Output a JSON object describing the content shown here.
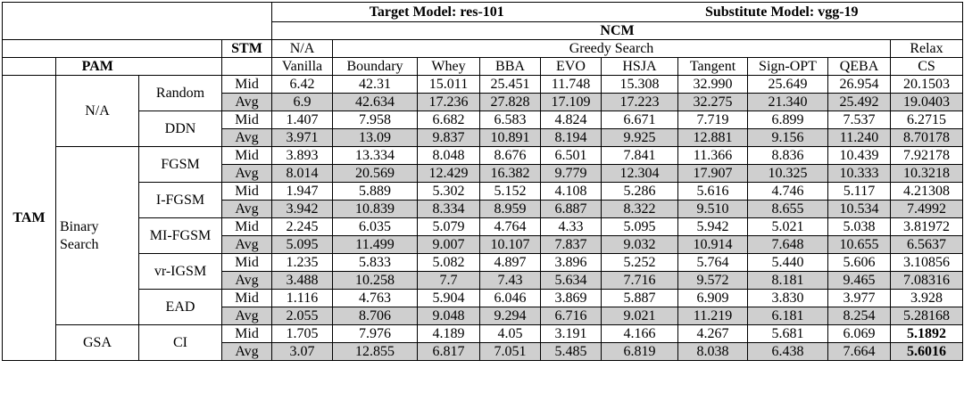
{
  "header": {
    "target_model": "Target Model: res-101",
    "substitute_model": "Substitute Model: vgg-19",
    "ncm": "NCM",
    "stm": "STM",
    "pam": "PAM",
    "tam": "TAM",
    "na": "N/A",
    "greedy_search": "Greedy Search",
    "relax": "Relax",
    "columns": [
      "Vanilla",
      "Boundary",
      "Whey",
      "BBA",
      "EVO",
      "HSJA",
      "Tangent",
      "Sign-OPT",
      "QEBA",
      "CS"
    ]
  },
  "groups": [
    {
      "tam": "N/A",
      "methods": [
        {
          "pam": "Random",
          "rows": [
            {
              "stm": "Mid",
              "values": [
                "6.42",
                "42.31",
                "15.011",
                "25.451",
                "11.748",
                "15.308",
                "32.990",
                "25.649",
                "26.954",
                "20.1503"
              ]
            },
            {
              "stm": "Avg",
              "values": [
                "6.9",
                "42.634",
                "17.236",
                "27.828",
                "17.109",
                "17.223",
                "32.275",
                "21.340",
                "25.492",
                "19.0403"
              ]
            }
          ]
        },
        {
          "pam": "DDN",
          "rows": [
            {
              "stm": "Mid",
              "values": [
                "1.407",
                "7.958",
                "6.682",
                "6.583",
                "4.824",
                "6.671",
                "7.719",
                "6.899",
                "7.537",
                "6.2715"
              ]
            },
            {
              "stm": "Avg",
              "values": [
                "3.971",
                "13.09",
                "9.837",
                "10.891",
                "8.194",
                "9.925",
                "12.881",
                "9.156",
                "11.240",
                "8.70178"
              ]
            }
          ]
        }
      ]
    },
    {
      "tam": "Binary Search",
      "methods": [
        {
          "pam": "FGSM",
          "rows": [
            {
              "stm": "Mid",
              "values": [
                "3.893",
                "13.334",
                "8.048",
                "8.676",
                "6.501",
                "7.841",
                "11.366",
                "8.836",
                "10.439",
                "7.92178"
              ]
            },
            {
              "stm": "Avg",
              "values": [
                "8.014",
                "20.569",
                "12.429",
                "16.382",
                "9.779",
                "12.304",
                "17.907",
                "10.325",
                "10.333",
                "10.3218"
              ]
            }
          ]
        },
        {
          "pam": "I-FGSM",
          "rows": [
            {
              "stm": "Mid",
              "values": [
                "1.947",
                "5.889",
                "5.302",
                "5.152",
                "4.108",
                "5.286",
                "5.616",
                "4.746",
                "5.117",
                "4.21308"
              ]
            },
            {
              "stm": "Avg",
              "values": [
                "3.942",
                "10.839",
                "8.334",
                "8.959",
                "6.887",
                "8.322",
                "9.510",
                "8.655",
                "10.534",
                "7.4992"
              ]
            }
          ]
        },
        {
          "pam": "MI-FGSM",
          "rows": [
            {
              "stm": "Mid",
              "values": [
                "2.245",
                "6.035",
                "5.079",
                "4.764",
                "4.33",
                "5.095",
                "5.942",
                "5.021",
                "5.038",
                "3.81972"
              ]
            },
            {
              "stm": "Avg",
              "values": [
                "5.095",
                "11.499",
                "9.007",
                "10.107",
                "7.837",
                "9.032",
                "10.914",
                "7.648",
                "10.655",
                "6.5637"
              ]
            }
          ]
        },
        {
          "pam": "vr-IGSM",
          "rows": [
            {
              "stm": "Mid",
              "values": [
                "1.235",
                "5.833",
                "5.082",
                "4.897",
                "3.896",
                "5.252",
                "5.764",
                "5.440",
                "5.606",
                "3.10856"
              ]
            },
            {
              "stm": "Avg",
              "values": [
                "3.488",
                "10.258",
                "7.7",
                "7.43",
                "5.634",
                "7.716",
                "9.572",
                "8.181",
                "9.465",
                "7.08316"
              ]
            }
          ]
        },
        {
          "pam": "EAD",
          "rows": [
            {
              "stm": "Mid",
              "values": [
                "1.116",
                "4.763",
                "5.904",
                "6.046",
                "3.869",
                "5.887",
                "6.909",
                "3.830",
                "3.977",
                "3.928"
              ]
            },
            {
              "stm": "Avg",
              "values": [
                "2.055",
                "8.706",
                "9.048",
                "9.294",
                "6.716",
                "9.021",
                "11.219",
                "6.181",
                "8.254",
                "5.28168"
              ]
            }
          ]
        }
      ]
    },
    {
      "tam": "GSA",
      "methods": [
        {
          "pam": "CI",
          "bold_last": true,
          "rows": [
            {
              "stm": "Mid",
              "values": [
                "1.705",
                "7.976",
                "4.189",
                "4.05",
                "3.191",
                "4.166",
                "4.267",
                "5.681",
                "6.069",
                "5.1892"
              ]
            },
            {
              "stm": "Avg",
              "values": [
                "3.07",
                "12.855",
                "6.817",
                "7.051",
                "5.485",
                "6.819",
                "8.038",
                "6.438",
                "7.664",
                "5.6016"
              ]
            }
          ]
        }
      ]
    }
  ]
}
